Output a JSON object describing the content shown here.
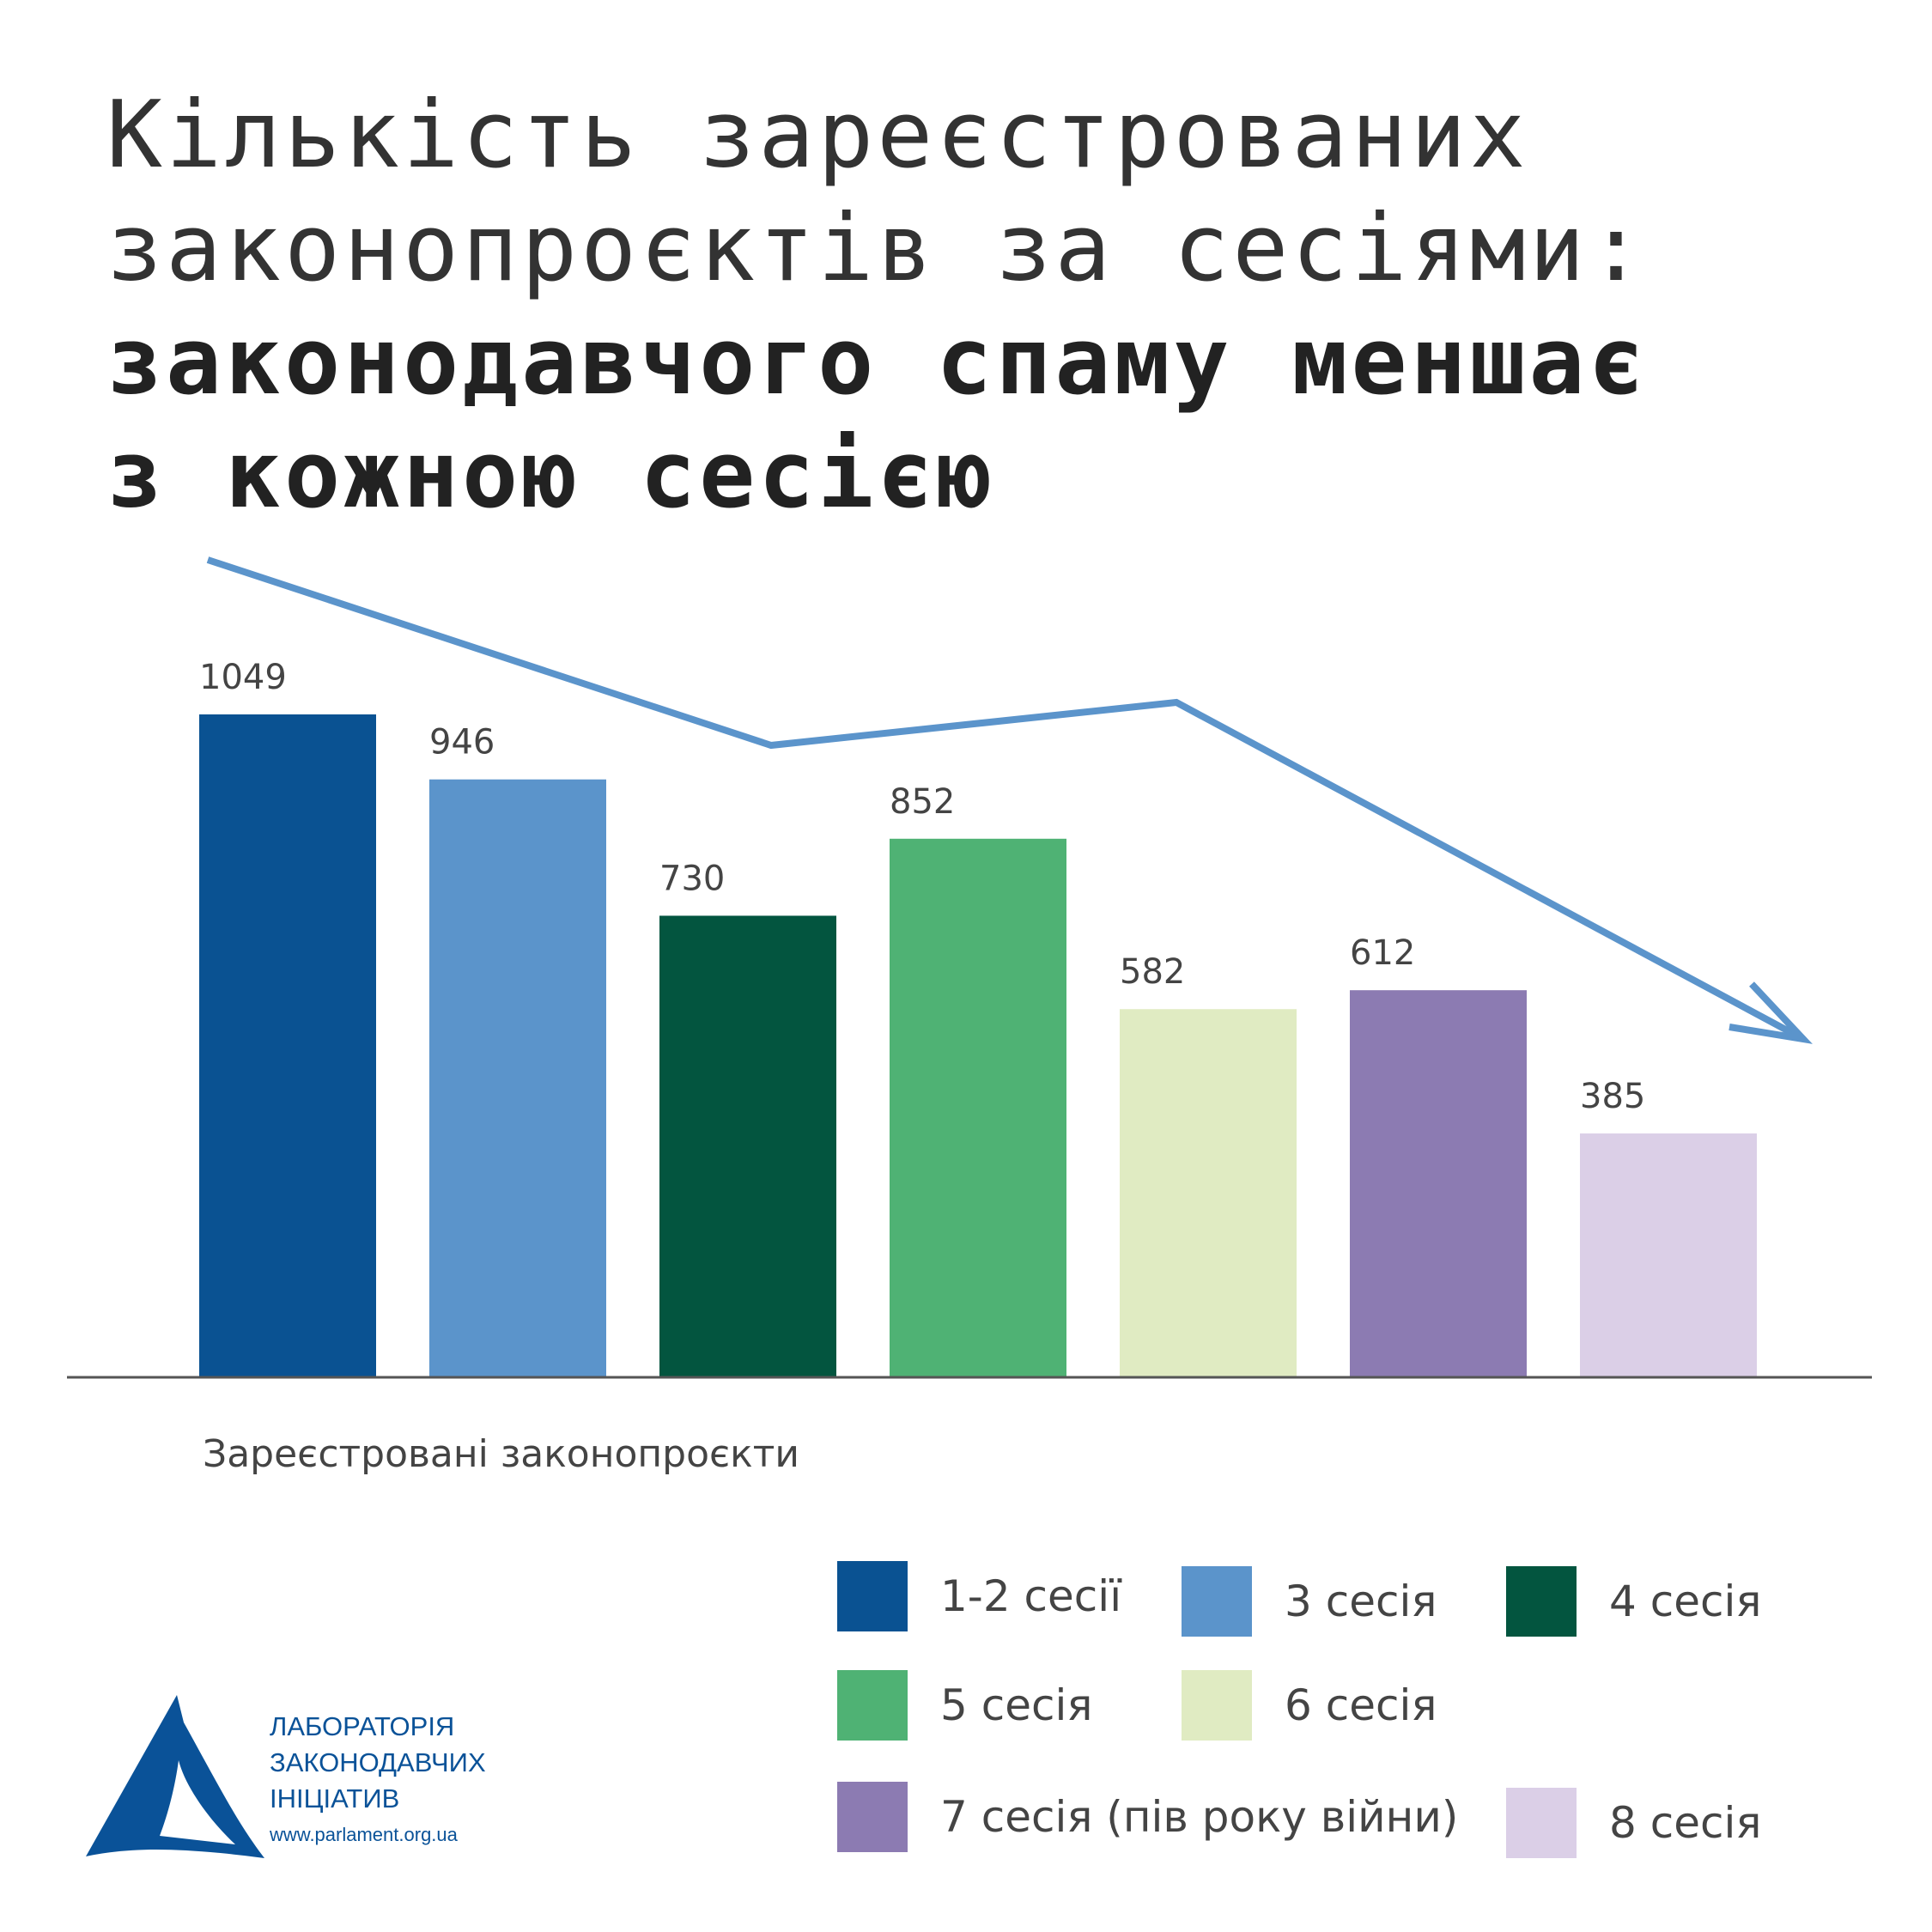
{
  "title": {
    "line1": "Кількість зареєстрованих",
    "line2": "законопроєктів за сесіями:",
    "line3": "законодавчого спаму меншає",
    "line4": "з кожною сесією"
  },
  "chart_data": {
    "type": "bar",
    "categories": [
      "1-2 сесії",
      "3 сесія",
      "4 сесія",
      "5 сесія",
      "6 сесія",
      "7 сесія (пів року війни)",
      "8 сесія"
    ],
    "values": [
      1049,
      946,
      730,
      852,
      582,
      612,
      385
    ],
    "colors": [
      "#0a5292",
      "#5b94cb",
      "#03553f",
      "#4fb274",
      "#e0ebc2",
      "#8c7bb2",
      "#dbcfe7"
    ],
    "xlabel": "Зареєстровані законопроєкти",
    "ylabel": "",
    "ylim": [
      0,
      1049
    ],
    "grid": false,
    "legend_placement": "bottom-right",
    "trend_arrow_color": "#5b94cb"
  },
  "legend": {
    "items": [
      {
        "label": "1-2 сесії",
        "color": "#0a5292"
      },
      {
        "label": "3 сесія",
        "color": "#5b94cb"
      },
      {
        "label": "4 сесія",
        "color": "#03553f"
      },
      {
        "label": "5 сесія",
        "color": "#4fb274"
      },
      {
        "label": "6 сесія",
        "color": "#e0ebc2"
      },
      {
        "label": "7 сесія (пів року війни)",
        "color": "#8c7bb2"
      },
      {
        "label": "8 сесія",
        "color": "#dbcfe7"
      }
    ]
  },
  "logo": {
    "line1": "ЛАБОРАТОРІЯ",
    "line2": "ЗАКОНОДАВЧИХ",
    "line3": "ІНІЦІАТИВ",
    "url": "www.parlament.org.ua",
    "color": "#0a5298"
  }
}
